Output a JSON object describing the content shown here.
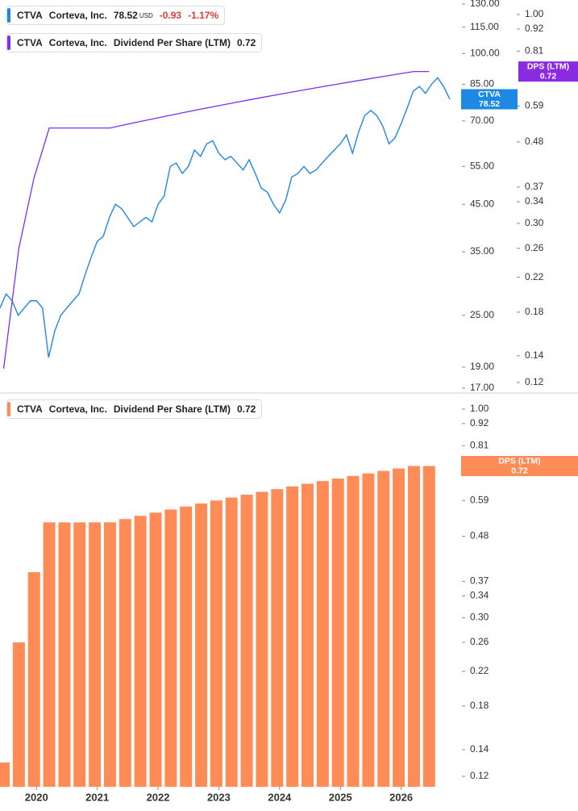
{
  "chart_data": [
    {
      "type": "line",
      "xlim": [
        2019.4,
        2026.96
      ],
      "ylim": [
        17,
        130
      ],
      "yticks": [
        {
          "value": 130,
          "label": "130.00"
        },
        {
          "value": 115,
          "label": "115.00"
        },
        {
          "value": 100,
          "label": "100.00"
        },
        {
          "value": 85,
          "label": "85.00"
        },
        {
          "value": 70,
          "label": "70.00"
        },
        {
          "value": 55,
          "label": "55.00"
        },
        {
          "value": 45,
          "label": "45.00"
        },
        {
          "value": 35,
          "label": "35.00"
        },
        {
          "value": 25,
          "label": "25.00"
        },
        {
          "value": 19,
          "label": "19.00"
        },
        {
          "value": 17,
          "label": "17.00"
        }
      ],
      "y2lim": [
        0.12,
        1
      ],
      "y2ticks": [
        {
          "value": 1,
          "label": "1.00"
        },
        0.92,
        0.81,
        0.59,
        0.48,
        0.37,
        0.34,
        {
          "value": 0.3,
          "label": "0.30"
        },
        0.26,
        0.22,
        0.18,
        0.14,
        0.12
      ],
      "log_scale": true,
      "series": [
        {
          "name": "Corteva, Inc.",
          "color": "#1e88e5",
          "x": [
            2019.4,
            2019.5,
            2019.6,
            2019.7,
            2019.8,
            2019.9,
            2020,
            2020.1,
            2020.2,
            2020.3,
            2020.4,
            2020.5,
            2020.6,
            2020.7,
            2020.8,
            2020.9,
            2021,
            2021.1,
            2021.2,
            2021.3,
            2021.4,
            2021.5,
            2021.6,
            2021.7,
            2021.8,
            2021.9,
            2022,
            2022.1,
            2022.2,
            2022.3,
            2022.4,
            2022.5,
            2022.6,
            2022.7,
            2022.8,
            2022.9,
            2023,
            2023.1,
            2023.2,
            2023.3,
            2023.4,
            2023.5,
            2023.6,
            2023.7,
            2023.8,
            2023.9,
            2024,
            2024.1,
            2024.2,
            2024.3,
            2024.4,
            2024.5,
            2024.6,
            2024.7,
            2024.8,
            2024.9,
            2025,
            2025.1,
            2025.2,
            2025.3,
            2025.4,
            2025.5,
            2025.6,
            2025.7,
            2025.8,
            2025.9,
            2026,
            2026.1,
            2026.2,
            2026.3,
            2026.4,
            2026.5,
            2026.6,
            2026.7,
            2026.8
          ],
          "values": [
            26,
            28,
            27,
            25,
            26,
            27,
            27,
            26,
            20,
            23,
            25,
            26,
            27,
            28,
            31,
            34,
            37,
            38,
            42,
            45,
            44,
            42,
            40,
            41,
            42,
            41,
            45,
            47,
            55,
            56,
            53,
            55,
            60,
            58,
            62,
            63,
            59,
            57,
            58,
            56,
            54,
            57,
            53,
            49,
            48,
            45,
            43,
            46,
            52,
            53,
            55,
            53,
            54,
            56,
            58,
            60,
            62,
            65,
            59,
            66,
            72,
            74,
            72,
            68,
            62,
            64,
            69,
            75,
            82,
            84,
            81,
            85,
            88,
            84,
            78.52
          ]
        },
        {
          "name": "Dividend Per Share (LTM)",
          "color": "#7b2ff7",
          "axis": "y2",
          "x": [
            2019.46,
            2019.71,
            2019.96,
            2020.21,
            2020.46,
            2020.71,
            2020.96,
            2021.21,
            2021.46,
            2021.71,
            2021.96,
            2022.21,
            2022.46,
            2022.71,
            2022.96,
            2023.21,
            2023.46,
            2023.71,
            2023.96,
            2024.21,
            2024.46,
            2024.71,
            2024.96,
            2025.21,
            2025.46,
            2025.71,
            2025.96,
            2026.21,
            2026.46
          ],
          "values": [
            0.13,
            0.26,
            0.39,
            0.52,
            0.52,
            0.52,
            0.52,
            0.52,
            0.53,
            0.54,
            0.55,
            0.56,
            0.57,
            0.58,
            0.59,
            0.6,
            0.61,
            0.62,
            0.63,
            0.64,
            0.65,
            0.66,
            0.67,
            0.68,
            0.69,
            0.7,
            0.71,
            0.72,
            0.72
          ]
        }
      ],
      "legend": [
        {
          "ticker": "CTVA",
          "price": "78.52",
          "currency": "USD",
          "change": "-0.93",
          "change_pct": "-1.17%"
        },
        {
          "ticker": "CTVA",
          "company": "Corteva, Inc.",
          "value": "0.72"
        }
      ],
      "badges": [
        {
          "label": "CTVA",
          "value": 78.52,
          "color": "#1e88e5"
        },
        {
          "label": "DPS (LTM)",
          "value": 0.72,
          "color": "#8a2be2",
          "axis": "y2"
        }
      ]
    },
    {
      "type": "bar",
      "xlim": [
        2019.4,
        2026.96
      ],
      "xticks": [
        2020,
        2021,
        2022,
        2023,
        2024,
        2025,
        2026
      ],
      "ylim": [
        0.12,
        1
      ],
      "yticks": [
        {
          "value": 1,
          "label": "1.00"
        },
        0.92,
        0.81,
        0.59,
        0.48,
        0.37,
        0.34,
        {
          "value": 0.3,
          "label": "0.30"
        },
        0.26,
        0.22,
        0.18,
        0.14,
        0.12
      ],
      "log_scale": true,
      "x": [
        2019.46,
        2019.71,
        2019.96,
        2020.21,
        2020.46,
        2020.71,
        2020.96,
        2021.21,
        2021.46,
        2021.71,
        2021.96,
        2022.21,
        2022.46,
        2022.71,
        2022.96,
        2023.21,
        2023.46,
        2023.71,
        2023.96,
        2024.21,
        2024.46,
        2024.71,
        2024.96,
        2025.21,
        2025.46,
        2025.71,
        2025.96,
        2026.21,
        2026.46
      ],
      "series": [
        {
          "name": "Dividend Per Share (LTM)",
          "color": "#ff8c57",
          "values": [
            0.13,
            0.26,
            0.39,
            0.52,
            0.52,
            0.52,
            0.52,
            0.52,
            0.53,
            0.54,
            0.55,
            0.56,
            0.57,
            0.58,
            0.59,
            0.6,
            0.61,
            0.62,
            0.63,
            0.64,
            0.65,
            0.66,
            0.67,
            0.68,
            0.69,
            0.7,
            0.71,
            0.72,
            0.72
          ]
        }
      ],
      "legend": [
        {
          "ticker": "CTVA",
          "company": "Corteva, Inc.",
          "value": "0.72"
        }
      ],
      "badges": [
        {
          "label": "DPS (LTM)",
          "value": 0.72,
          "color": "#ff8c57"
        }
      ]
    }
  ]
}
